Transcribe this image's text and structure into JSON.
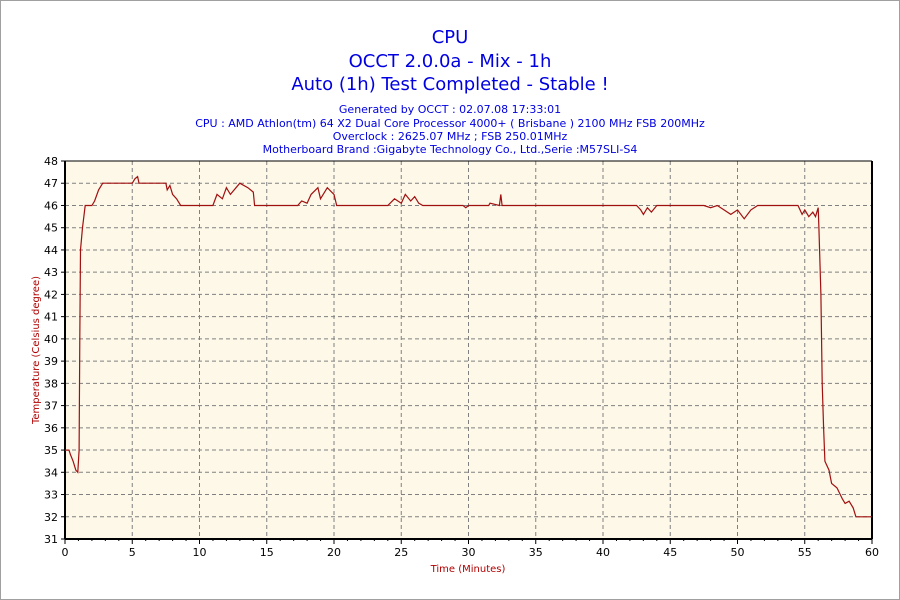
{
  "chart_data": {
    "type": "line",
    "title": "CPU",
    "subtitle": "OCCT 2.0.0a - Mix - 1h",
    "status": "Auto (1h) Test Completed - Stable !",
    "info": [
      "Generated by OCCT : 02.07.08 17:33:01",
      "CPU : AMD Athlon(tm) 64 X2 Dual Core Processor 4000+ ( Brisbane ) 2100 MHz FSB 200MHz",
      "Overclock : 2625.07 MHz ; FSB 250.01MHz",
      "Motherboard Brand :Gigabyte Technology Co., Ltd.,Serie :M57SLI-S4"
    ],
    "xlabel": "Time (Minutes)",
    "ylabel": "Temperature (Celsius degree)",
    "xlim": [
      0,
      60
    ],
    "ylim": [
      31,
      48
    ],
    "xticks": [
      0,
      5,
      10,
      15,
      20,
      25,
      30,
      35,
      40,
      45,
      50,
      55,
      60
    ],
    "yticks": [
      31,
      32,
      33,
      34,
      35,
      36,
      37,
      38,
      39,
      40,
      41,
      42,
      43,
      44,
      45,
      46,
      47,
      48
    ],
    "grid": true,
    "colors": {
      "line": "#a01010",
      "plot_bg": "#fdf8e8",
      "title": "#0000e0",
      "grid": "#808080"
    },
    "series": [
      {
        "name": "CPU",
        "x": [
          0,
          0.3,
          0.4,
          0.6,
          0.8,
          0.95,
          1.05,
          1.1,
          1.15,
          1.3,
          1.5,
          2,
          2.2,
          2.5,
          2.8,
          5.0,
          5.2,
          5.4,
          5.5,
          7.5,
          7.6,
          7.8,
          8.0,
          8.3,
          8.6,
          11,
          11.3,
          11.7,
          12,
          12.3,
          13,
          13.6,
          14,
          14.1,
          17.3,
          17.6,
          18,
          18.3,
          18.8,
          19,
          19.5,
          20,
          20.2,
          24,
          24.5,
          25,
          25.3,
          25.7,
          26,
          26.3,
          26.6,
          29.6,
          29.8,
          30,
          31.5,
          31.6,
          32.3,
          32.4,
          32.5,
          42.5,
          42.8,
          43,
          43.3,
          43.6,
          44,
          47.5,
          48,
          48.5,
          49,
          49.5,
          50,
          50.5,
          51,
          51.5,
          54.5,
          54.8,
          55,
          55.3,
          55.6,
          55.8,
          56,
          56.05,
          56.2,
          56.3,
          56.4,
          56.5,
          56.8,
          57,
          57.4,
          57.8,
          58,
          58.3,
          58.6,
          58.8,
          60
        ],
        "y": [
          35,
          35,
          34.8,
          34.5,
          34.1,
          34,
          35,
          40,
          44,
          45,
          46,
          46,
          46.2,
          46.7,
          47,
          47,
          47.2,
          47.3,
          47,
          47,
          46.7,
          46.9,
          46.5,
          46.3,
          46,
          46,
          46.5,
          46.3,
          46.8,
          46.5,
          47,
          46.8,
          46.6,
          46,
          46,
          46.2,
          46.1,
          46.5,
          46.8,
          46.3,
          46.8,
          46.5,
          46,
          46,
          46.3,
          46.1,
          46.5,
          46.2,
          46.4,
          46.1,
          46,
          46,
          45.9,
          46,
          46,
          46.1,
          46,
          46.5,
          46,
          46,
          45.8,
          45.6,
          45.9,
          45.7,
          46,
          46,
          45.9,
          46,
          45.8,
          45.6,
          45.8,
          45.4,
          45.8,
          46,
          46,
          45.6,
          45.8,
          45.5,
          45.7,
          45.5,
          45.9,
          45,
          42,
          38,
          36,
          34.5,
          34.1,
          33.5,
          33.3,
          32.8,
          32.6,
          32.7,
          32.4,
          32,
          32
        ]
      }
    ]
  }
}
